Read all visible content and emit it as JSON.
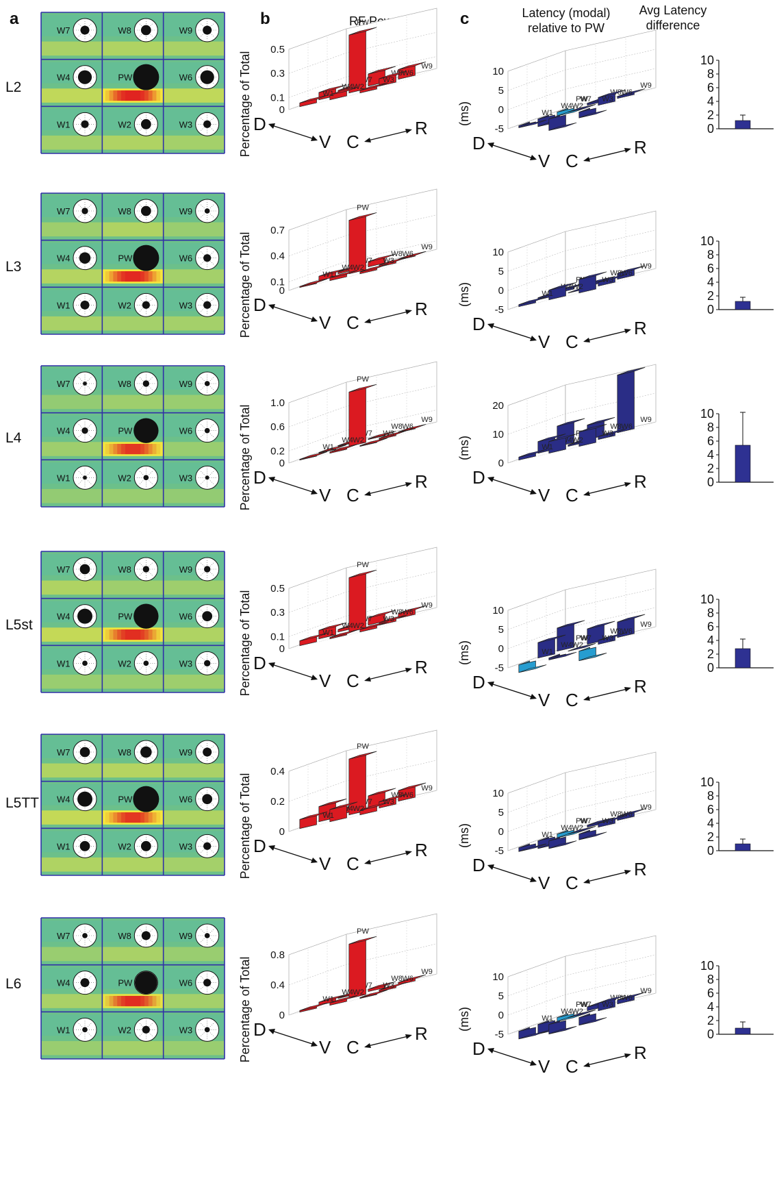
{
  "headers": {
    "a": "a",
    "b": "b",
    "c": "c",
    "rf_power": "RF Power",
    "latency": [
      "Latency (modal)",
      "relative to PW"
    ],
    "avg_latency": [
      "Avg Latency",
      "difference"
    ]
  },
  "chart_data": [
    {
      "type": "bar",
      "panel": "b",
      "layer": "L2",
      "ylabel": "Percentage of Total",
      "ylim": [
        0,
        0.5
      ],
      "yticks": [
        "0.5",
        "0.3",
        "0.1",
        "0"
      ],
      "categories": [
        "W7",
        "W8",
        "W9",
        "W4",
        "PW",
        "W6",
        "W1",
        "W2",
        "W3"
      ],
      "values": [
        0.02,
        0.1,
        0.08,
        0.06,
        0.48,
        0.06,
        0.03,
        0.04,
        0.02
      ],
      "axis_labels": [
        "D",
        "V",
        "C",
        "R"
      ]
    },
    {
      "type": "bar",
      "panel": "b",
      "layer": "L3",
      "ylabel": "Percentage of Total",
      "ylim": [
        0,
        0.7
      ],
      "yticks": [
        "0.7",
        "0.4",
        "0.1",
        "0"
      ],
      "categories": [
        "W7",
        "W8",
        "W9",
        "W4",
        "PW",
        "W6",
        "W1",
        "W2",
        "W3"
      ],
      "values": [
        0.02,
        0.06,
        0.01,
        0.05,
        0.62,
        0.02,
        0.01,
        0.03,
        0.02
      ],
      "axis_labels": [
        "D",
        "V",
        "C",
        "R"
      ]
    },
    {
      "type": "bar",
      "panel": "b",
      "layer": "L4",
      "ylabel": "Percentage of Total",
      "ylim": [
        0,
        1.0
      ],
      "yticks": [
        "1.0",
        "0.6",
        "0.2",
        "0"
      ],
      "categories": [
        "W7",
        "W8",
        "W9",
        "W4",
        "PW",
        "W6",
        "W1",
        "W2",
        "W3"
      ],
      "values": [
        0.01,
        0.01,
        0.01,
        0.01,
        0.9,
        0.02,
        0.01,
        0.02,
        0.01
      ],
      "axis_labels": [
        "D",
        "V",
        "C",
        "R"
      ]
    },
    {
      "type": "bar",
      "panel": "b",
      "layer": "L5st",
      "ylabel": "Percentage of Total",
      "ylim": [
        0,
        0.5
      ],
      "yticks": [
        "0.5",
        "0.3",
        "0.1",
        "0"
      ],
      "categories": [
        "W7",
        "W8",
        "W9",
        "W4",
        "PW",
        "W6",
        "W1",
        "W2",
        "W3"
      ],
      "values": [
        0.02,
        0.06,
        0.04,
        0.07,
        0.45,
        0.02,
        0.04,
        0.01,
        0.02
      ],
      "axis_labels": [
        "D",
        "V",
        "C",
        "R"
      ]
    },
    {
      "type": "bar",
      "panel": "b",
      "layer": "L5TT",
      "ylabel": "Percentage of Total",
      "ylim": [
        0,
        0.4
      ],
      "yticks": [
        "0.4",
        "0.2",
        "0"
      ],
      "categories": [
        "W7",
        "W8",
        "W9",
        "W4",
        "PW",
        "W6",
        "W1",
        "W2",
        "W3"
      ],
      "values": [
        0.03,
        0.08,
        0.07,
        0.1,
        0.37,
        0.04,
        0.06,
        0.08,
        0.03
      ],
      "axis_labels": [
        "D",
        "V",
        "C",
        "R"
      ]
    },
    {
      "type": "bar",
      "panel": "b",
      "layer": "L6",
      "ylabel": "Percentage of Total",
      "ylim": [
        0,
        0.8
      ],
      "yticks": [
        "0.8",
        "0.4",
        "0"
      ],
      "categories": [
        "W7",
        "W8",
        "W9",
        "W4",
        "PW",
        "W6",
        "W1",
        "W2",
        "W3"
      ],
      "values": [
        0.01,
        0.03,
        0.03,
        0.04,
        0.72,
        0.02,
        0.02,
        0.03,
        0.01
      ],
      "axis_labels": [
        "D",
        "V",
        "C",
        "R"
      ]
    },
    {
      "type": "bar",
      "panel": "c",
      "layer": "L2",
      "ylabel": "(ms)",
      "ylim": [
        -5,
        10
      ],
      "yticks": [
        "10",
        "5",
        "0",
        "-5"
      ],
      "categories": [
        "W7",
        "W8",
        "W9",
        "W4",
        "PW",
        "W6",
        "W1",
        "W2",
        "W3"
      ],
      "values": [
        -1,
        0.5,
        0.5,
        -2,
        0,
        2,
        -0.5,
        -3,
        -1.5
      ],
      "highlight": [
        "W7"
      ],
      "axis_labels": [
        "D",
        "V",
        "C",
        "R"
      ]
    },
    {
      "type": "bar",
      "panel": "c",
      "layer": "L3",
      "ylabel": "(ms)",
      "ylim": [
        -5,
        10
      ],
      "yticks": [
        "10",
        "5",
        "0",
        "-5"
      ],
      "categories": [
        "W7",
        "W8",
        "W9",
        "W4",
        "PW",
        "W6",
        "W1",
        "W2",
        "W3"
      ],
      "values": [
        0.5,
        0.5,
        1.5,
        0.5,
        0,
        1,
        0.5,
        2.5,
        3.5
      ],
      "highlight": [],
      "axis_labels": [
        "D",
        "V",
        "C",
        "R"
      ]
    },
    {
      "type": "bar",
      "panel": "c",
      "layer": "L4",
      "ylabel": "(ms)",
      "ylim": [
        0,
        20
      ],
      "yticks": [
        "20",
        "10",
        "0"
      ],
      "categories": [
        "W7",
        "W8",
        "W9",
        "W4",
        "PW",
        "W6",
        "W1",
        "W2",
        "W3"
      ],
      "values": [
        7,
        5,
        20,
        4,
        0.5,
        1,
        1,
        4,
        5
      ],
      "highlight": [],
      "axis_labels": [
        "D",
        "V",
        "C",
        "R"
      ]
    },
    {
      "type": "bar",
      "panel": "c",
      "layer": "L5st",
      "ylabel": "(ms)",
      "ylim": [
        -5,
        10
      ],
      "yticks": [
        "10",
        "5",
        "0",
        "-5"
      ],
      "categories": [
        "W7",
        "W8",
        "W9",
        "W4",
        "PW",
        "W6",
        "W1",
        "W2",
        "W3"
      ],
      "values": [
        6,
        4,
        4,
        4,
        0,
        1,
        -2,
        -0.5,
        -2.5
      ],
      "highlight": [
        "W1",
        "W3"
      ],
      "axis_labels": [
        "D",
        "V",
        "C",
        "R"
      ]
    },
    {
      "type": "bar",
      "panel": "c",
      "layer": "L5TT",
      "ylabel": "(ms)",
      "ylim": [
        -5,
        10
      ],
      "yticks": [
        "10",
        "5",
        "0",
        "-5"
      ],
      "categories": [
        "W7",
        "W8",
        "W9",
        "W4",
        "PW",
        "W6",
        "W1",
        "W2",
        "W3"
      ],
      "values": [
        -1,
        0.5,
        1,
        -2,
        0,
        1,
        -1,
        -2,
        -1.5
      ],
      "highlight": [
        "W7"
      ],
      "axis_labels": [
        "D",
        "V",
        "C",
        "R"
      ]
    },
    {
      "type": "bar",
      "panel": "c",
      "layer": "L6",
      "ylabel": "(ms)",
      "ylim": [
        -5,
        10
      ],
      "yticks": [
        "10",
        "5",
        "0",
        "-5"
      ],
      "categories": [
        "W7",
        "W8",
        "W9",
        "W4",
        "PW",
        "W6",
        "W1",
        "W2",
        "W3"
      ],
      "values": [
        -1,
        1,
        1,
        -2.5,
        0,
        2,
        -2,
        -2.5,
        -2
      ],
      "highlight": [
        "W7"
      ],
      "axis_labels": [
        "D",
        "V",
        "C",
        "R"
      ]
    },
    {
      "type": "bar",
      "panel": "avg",
      "layer": "L2",
      "ylim": [
        0,
        10
      ],
      "yticks": [
        "10",
        "8",
        "6",
        "4",
        "2",
        "0"
      ],
      "value": 1.2,
      "error": 0.8
    },
    {
      "type": "bar",
      "panel": "avg",
      "layer": "L3",
      "ylim": [
        0,
        10
      ],
      "yticks": [
        "10",
        "8",
        "6",
        "4",
        "2",
        "0"
      ],
      "value": 1.2,
      "error": 0.6
    },
    {
      "type": "bar",
      "panel": "avg",
      "layer": "L4",
      "ylim": [
        0,
        10
      ],
      "yticks": [
        "10",
        "8",
        "6",
        "4",
        "2",
        "0"
      ],
      "value": 5.4,
      "error": 4.8
    },
    {
      "type": "bar",
      "panel": "avg",
      "layer": "L5st",
      "ylim": [
        0,
        10
      ],
      "yticks": [
        "10",
        "8",
        "6",
        "4",
        "2",
        "0"
      ],
      "value": 2.8,
      "error": 1.4
    },
    {
      "type": "bar",
      "panel": "avg",
      "layer": "L5TT",
      "ylim": [
        0,
        10
      ],
      "yticks": [
        "10",
        "8",
        "6",
        "4",
        "2",
        "0"
      ],
      "value": 1.0,
      "error": 0.7
    },
    {
      "type": "bar",
      "panel": "avg",
      "layer": "L6",
      "ylim": [
        0,
        10
      ],
      "yticks": [
        "10",
        "8",
        "6",
        "4",
        "2",
        "0"
      ],
      "value": 0.9,
      "error": 0.9
    }
  ],
  "heatmaps": [
    {
      "layer": "L2",
      "labels": [
        "W7",
        "W8",
        "W9",
        "W4",
        "PW",
        "W6",
        "W1",
        "W2",
        "W3"
      ],
      "blob": [
        0.25,
        0.3,
        0.25,
        0.45,
        1.0,
        0.45,
        0.2,
        0.3,
        0.2
      ],
      "red": 0.9
    },
    {
      "layer": "L3",
      "labels": [
        "W7",
        "W8",
        "W9",
        "W4",
        "PW",
        "W6",
        "W1",
        "W2",
        "W3"
      ],
      "blob": [
        0.15,
        0.3,
        0.1,
        0.35,
        1.0,
        0.2,
        0.25,
        0.2,
        0.2
      ],
      "red": 0.8
    },
    {
      "layer": "L4",
      "labels": [
        "W7",
        "W8",
        "W9",
        "W4",
        "PW",
        "W6",
        "W1",
        "W2",
        "W3"
      ],
      "blob": [
        0.05,
        0.15,
        0.1,
        0.15,
        0.9,
        0.1,
        0.05,
        0.1,
        0.05
      ],
      "red": 0.6
    },
    {
      "layer": "L5st",
      "labels": [
        "W7",
        "W8",
        "W9",
        "W4",
        "PW",
        "W6",
        "W1",
        "W2",
        "W3"
      ],
      "blob": [
        0.3,
        0.15,
        0.15,
        0.5,
        0.9,
        0.3,
        0.1,
        0.1,
        0.15
      ],
      "red": 0.7
    },
    {
      "layer": "L5TT",
      "labels": [
        "W7",
        "W8",
        "W9",
        "W4",
        "PW",
        "W6",
        "W1",
        "W2",
        "W3"
      ],
      "blob": [
        0.3,
        0.35,
        0.25,
        0.5,
        0.95,
        0.3,
        0.3,
        0.3,
        0.2
      ],
      "red": 0.6
    },
    {
      "layer": "L6",
      "labels": [
        "W7",
        "W8",
        "W9",
        "W4",
        "PW",
        "W6",
        "W1",
        "W2",
        "W3"
      ],
      "blob": [
        0.1,
        0.25,
        0.1,
        0.25,
        0.8,
        0.2,
        0.1,
        0.2,
        0.1
      ],
      "red": 0.7
    }
  ],
  "colors": {
    "rf_bar": "#ee1c24",
    "latency_bar": "#2e3192",
    "latency_highlight": "#29abe2",
    "avg_bar": "#2e3192",
    "grid_line": "#3030a8",
    "heat_bg": "#6cc08a",
    "heat_yellow": "#f5e63c",
    "heat_red": "#e02020"
  }
}
